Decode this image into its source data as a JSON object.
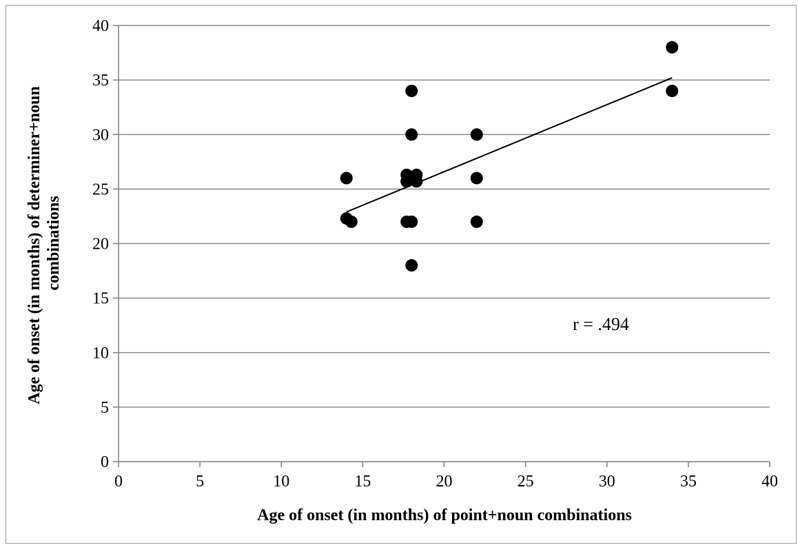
{
  "chart_data": {
    "type": "scatter",
    "title": "",
    "xlabel": "Age of onset (in months) of point+noun combinations",
    "ylabel": "Age of onset (in months) of determiner+noun combinations",
    "xlim": [
      0,
      40
    ],
    "ylim": [
      0,
      40
    ],
    "xticks": [
      0,
      5,
      10,
      15,
      20,
      25,
      30,
      35,
      40
    ],
    "yticks": [
      0,
      5,
      10,
      15,
      20,
      25,
      30,
      35,
      40
    ],
    "grid": "horizontal",
    "legend": "none",
    "annotation": "r = .494",
    "points": [
      {
        "x": 14,
        "y": 26
      },
      {
        "x": 14,
        "y": 22.3
      },
      {
        "x": 14.3,
        "y": 22
      },
      {
        "x": 17.7,
        "y": 26.3
      },
      {
        "x": 17.7,
        "y": 25.7
      },
      {
        "x": 18.3,
        "y": 26.3
      },
      {
        "x": 18.3,
        "y": 25.7
      },
      {
        "x": 17.7,
        "y": 22
      },
      {
        "x": 18,
        "y": 22
      },
      {
        "x": 18,
        "y": 34
      },
      {
        "x": 18,
        "y": 30
      },
      {
        "x": 18,
        "y": 18
      },
      {
        "x": 22,
        "y": 30
      },
      {
        "x": 22,
        "y": 26
      },
      {
        "x": 22,
        "y": 22
      },
      {
        "x": 34,
        "y": 38
      },
      {
        "x": 34,
        "y": 34
      }
    ],
    "trendline": {
      "x": [
        14,
        34
      ],
      "y": [
        22.9,
        35.2
      ]
    },
    "colors": {
      "points": "#000000",
      "grid": "#8c8c8c",
      "axis": "#7f7f7f",
      "trendline": "#000000"
    }
  }
}
